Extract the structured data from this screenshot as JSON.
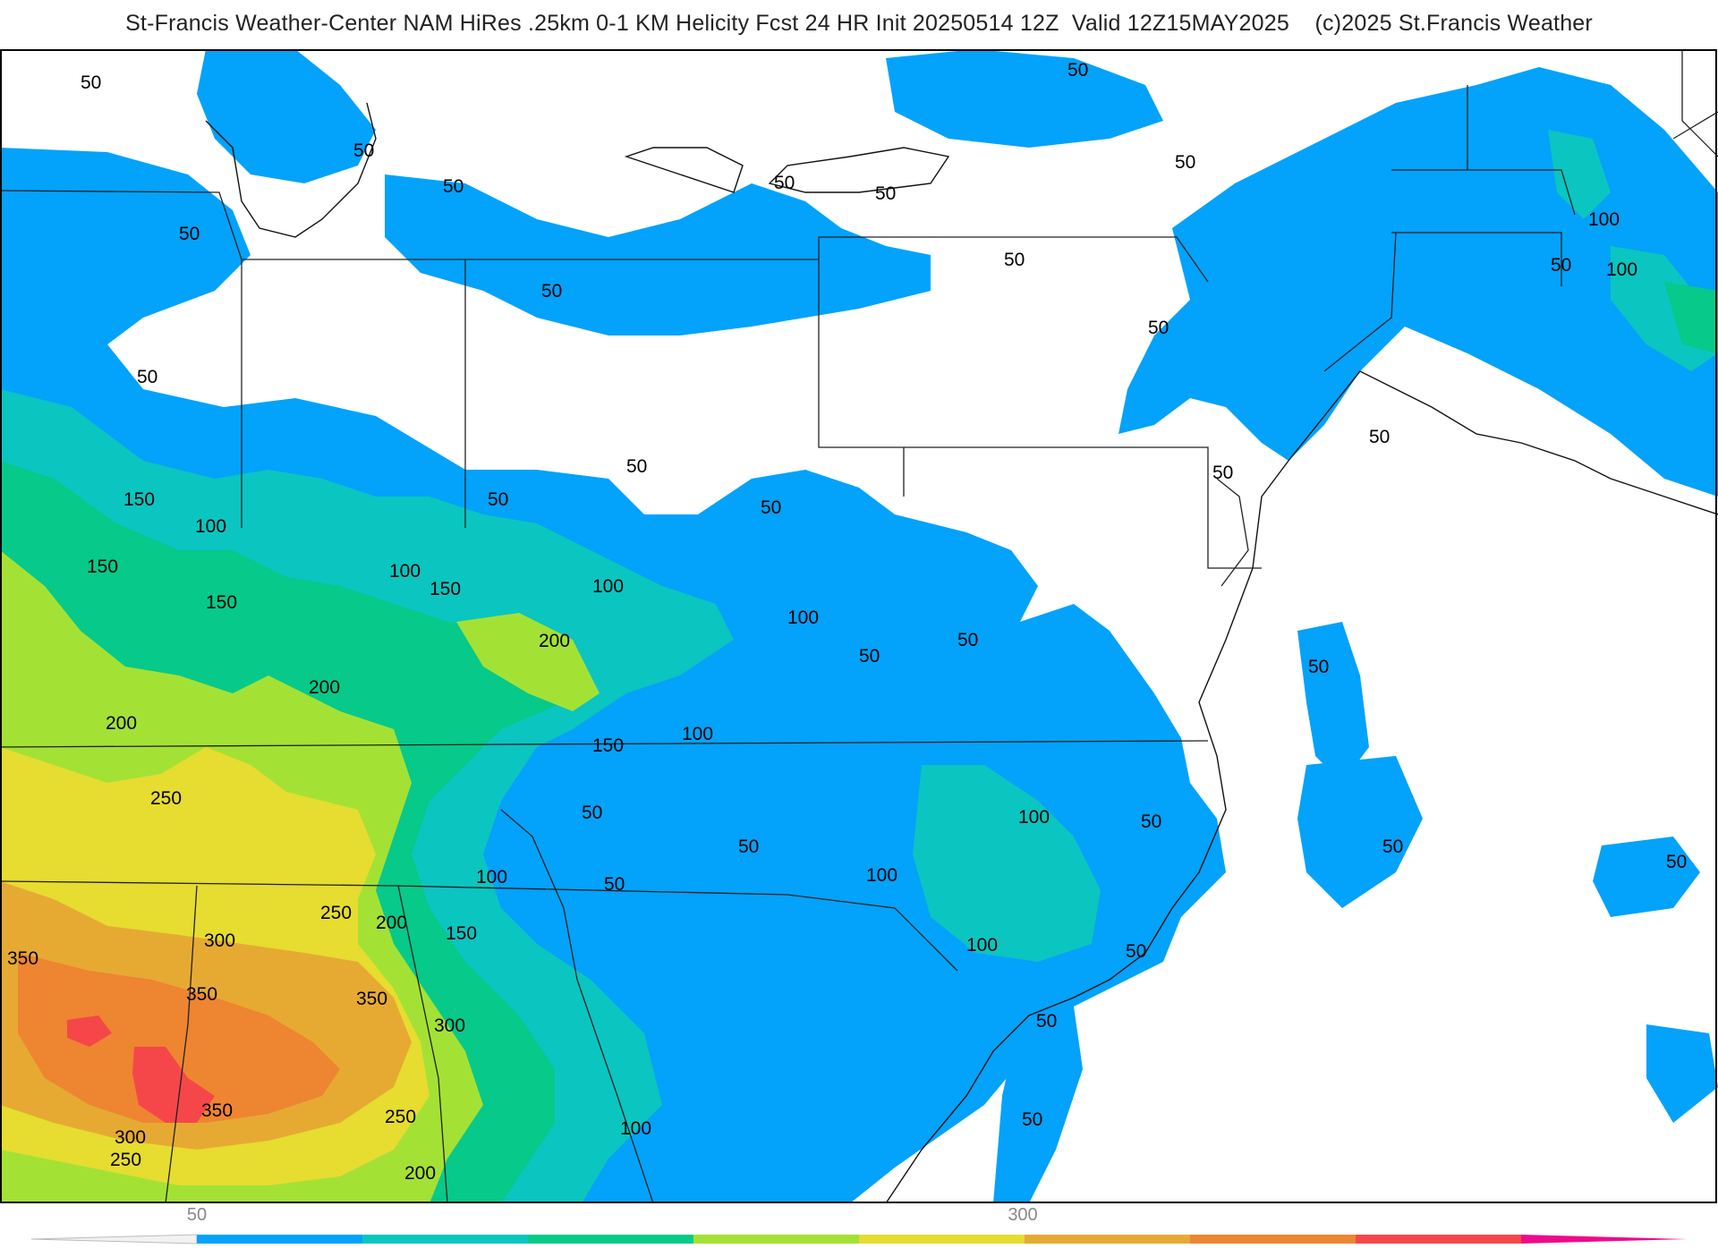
{
  "title": "St-Francis Weather-Center NAM HiRes .25km 0-1 KM Helicity Fcst 24 HR Init 20250514 12Z  Valid 12Z15MAY2025    (c)2025 St.Francis Weather",
  "map": {
    "parameter": "0-1 KM Helicity",
    "contour_interval": 50,
    "colors": {
      "50": "#03a2fb",
      "100": "#0bc5c0",
      "150": "#06c98a",
      "200": "#a3e234",
      "250": "#e7dc30",
      "300": "#e6aa33",
      "350": "#ee8531",
      "400": "#f5474a",
      "land_border": "#333333",
      "county_border": "#b4b4b4",
      "ocean": "#ffffff"
    },
    "contour_labels": [
      "50",
      "100",
      "150",
      "200",
      "250",
      "300",
      "350"
    ]
  },
  "colorbar": {
    "tick_labels": [
      "50",
      "300"
    ],
    "colors": [
      "#03a2fb",
      "#0bc5c0",
      "#06c98a",
      "#a3e234",
      "#e7dc30",
      "#e6aa33",
      "#ee8531",
      "#f5474a",
      "#ee0a8a"
    ]
  }
}
